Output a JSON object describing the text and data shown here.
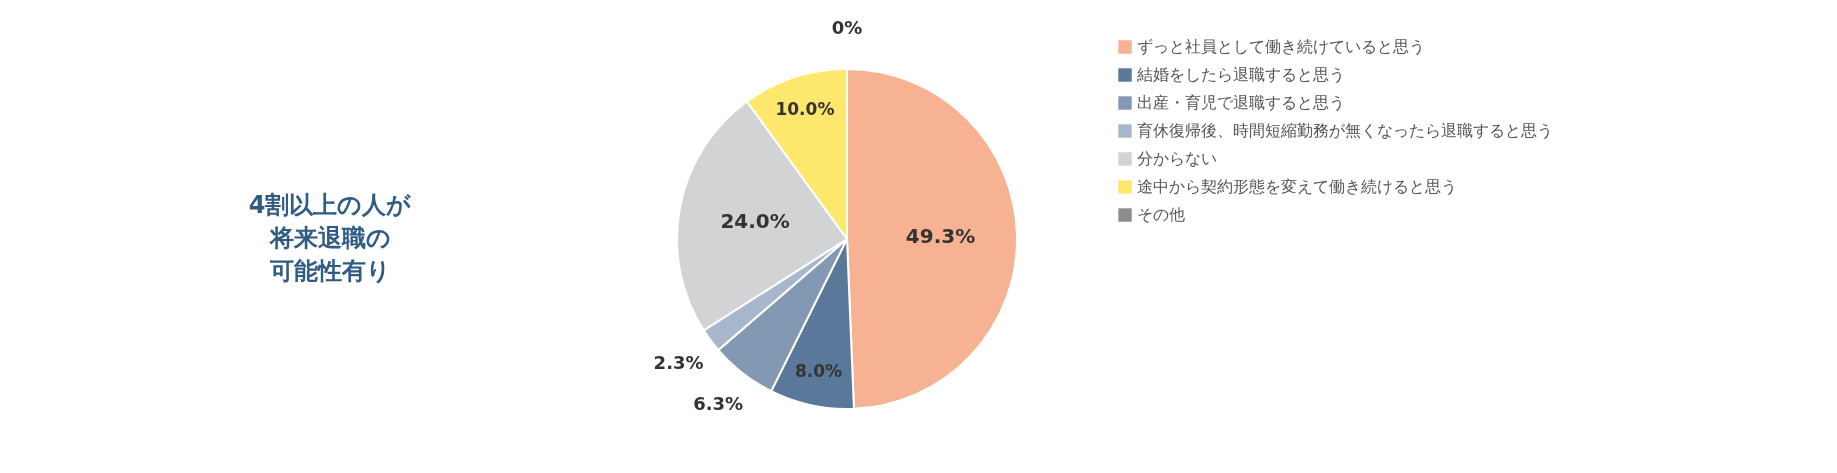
{
  "chart_data": {
    "type": "pie",
    "categories": [
      "ずっと社員として働き続けていると思う",
      "結婚をしたら退職すると思う",
      "出産・育児で退職すると思う",
      "育休復帰後、時間短縮勤務が無くなったら退職すると思う",
      "分からない",
      "途中から契約形態を変えて働き続けると思う",
      "その他"
    ],
    "values": [
      49.3,
      8.0,
      6.3,
      2.3,
      24.0,
      10.0,
      0
    ],
    "colors": [
      "#f7b294",
      "#5a7899",
      "#8398b3",
      "#a8b7cb",
      "#d2d3d5",
      "#fde76c",
      "#8c8d8f"
    ],
    "value_labels": [
      "49.3%",
      "8.0%",
      "6.3%",
      "2.3%",
      "24.0%",
      "10.0%",
      "0%"
    ],
    "legend": "right",
    "annotations": [
      "4割以上の人が",
      "将来退職の",
      "可能性有り"
    ]
  }
}
